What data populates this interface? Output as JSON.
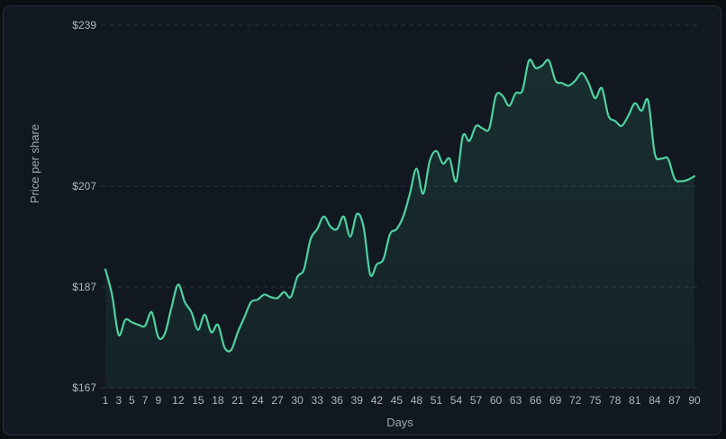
{
  "chart_data": {
    "type": "area",
    "xlabel": "Days",
    "ylabel": "Price per share",
    "ylim": [
      167,
      239
    ],
    "yticks": [
      167,
      187,
      207,
      239
    ],
    "ytick_labels": [
      "$167",
      "$187",
      "$207",
      "$239"
    ],
    "xlim": [
      1,
      90
    ],
    "xticks": [
      1,
      3,
      5,
      7,
      9,
      12,
      15,
      18,
      21,
      24,
      27,
      30,
      33,
      36,
      39,
      42,
      45,
      48,
      51,
      54,
      57,
      60,
      63,
      66,
      69,
      72,
      75,
      78,
      81,
      84,
      87,
      90
    ],
    "grid": "horizontal-dashed",
    "series": [
      {
        "name": "",
        "color": "#4fd1a1",
        "x": [
          1,
          2,
          3,
          4,
          5,
          6,
          7,
          8,
          9,
          10,
          11,
          12,
          13,
          14,
          15,
          16,
          17,
          18,
          19,
          20,
          21,
          22,
          23,
          24,
          25,
          26,
          27,
          28,
          29,
          30,
          31,
          32,
          33,
          34,
          35,
          36,
          37,
          38,
          39,
          40,
          41,
          42,
          43,
          44,
          45,
          46,
          47,
          48,
          49,
          50,
          51,
          52,
          53,
          54,
          55,
          56,
          57,
          58,
          59,
          60,
          61,
          62,
          63,
          64,
          65,
          66,
          67,
          68,
          69,
          70,
          71,
          72,
          73,
          74,
          75,
          76,
          77,
          78,
          79,
          80,
          81,
          82,
          83,
          84,
          85,
          86,
          87,
          88,
          89,
          90
        ],
        "y": [
          190.5,
          185.5,
          177.5,
          180.5,
          180,
          179.5,
          179.3,
          182,
          177,
          177.8,
          183,
          187.5,
          184,
          182,
          178.5,
          181.5,
          178,
          179.5,
          175,
          174.5,
          178,
          181,
          184,
          184.5,
          185.5,
          185,
          184.8,
          186,
          185,
          189,
          190.5,
          196.5,
          198.5,
          201,
          199,
          198.5,
          201,
          197,
          201.5,
          199,
          189.5,
          191.5,
          192.5,
          197.5,
          198.5,
          201,
          205.5,
          210.5,
          205.5,
          212,
          214,
          211.5,
          212.5,
          208,
          217,
          216,
          219,
          218.5,
          218.5,
          225,
          225,
          223,
          225.5,
          226,
          232,
          230.5,
          231,
          232,
          228,
          227.5,
          227,
          228,
          229.5,
          227.5,
          224.5,
          226.5,
          221,
          220,
          219,
          221,
          223.5,
          222,
          224,
          213.5,
          212.5,
          212.5,
          208.5,
          208,
          208.3,
          209
        ]
      }
    ]
  }
}
